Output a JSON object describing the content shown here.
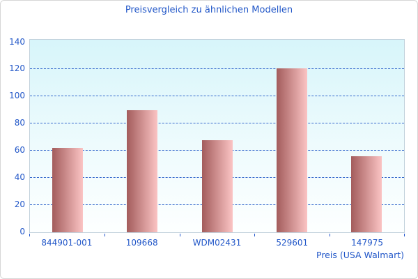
{
  "chart_data": {
    "type": "bar",
    "title": "Preisvergleich zu ähnlichen Modellen",
    "categories": [
      "844901-001",
      "109668",
      "WDM02431",
      "529601",
      "147975"
    ],
    "values": [
      62,
      90,
      68,
      121,
      56
    ],
    "xlabel": "Preis (USA Walmart)",
    "ylabel": "",
    "ylim": [
      0,
      140
    ],
    "yticks": [
      0,
      20,
      40,
      60,
      80,
      100,
      120,
      140
    ],
    "grid": "horizontal-dashed",
    "legend": "none",
    "bar_gradient": {
      "left": "#a35c5c",
      "right": "#fbc4c4"
    },
    "colors": {
      "title_text": "#2257c8",
      "axis_text": "#2257c8",
      "gridline": "#3568cc",
      "tick": "#2458cf",
      "plot_border": "#c2d1dc",
      "plot_bg_top": "#d7f5fa",
      "plot_bg_bottom": "#fdffff",
      "page_border": "#d6d6d6",
      "page_bg": "#ffffff"
    }
  }
}
